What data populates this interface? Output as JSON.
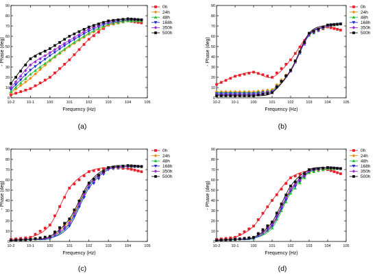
{
  "figure": {
    "series_names": [
      "0h",
      "24h",
      "48h",
      "168h",
      "350h",
      "500h"
    ],
    "series_colors": [
      "#e8202a",
      "#f28c18",
      "#22c33a",
      "#1f2ccf",
      "#9a2bd6",
      "#111111"
    ],
    "series_markers": [
      "square",
      "diamond",
      "triangle-up",
      "triangle-down",
      "diamond",
      "square"
    ]
  },
  "chart_data": [
    {
      "type": "line",
      "panel_label": "(a)",
      "title": "",
      "xlabel": "Frequency (Hz)",
      "ylabel": "- Phase (deg)",
      "xscale": "log",
      "xlim": [
        0.01,
        100000
      ],
      "ylim": [
        0,
        90
      ],
      "xticks": [
        "10-2",
        "10-1",
        "100",
        "101",
        "102",
        "103",
        "104",
        "105"
      ],
      "yticks": [
        "0",
        "10",
        "20",
        "30",
        "40",
        "50",
        "60",
        "70",
        "80",
        "90"
      ],
      "grid": false,
      "legend": "right-outside-top",
      "x": [
        0.01,
        0.1,
        1,
        10,
        100,
        1000,
        10000,
        50000
      ],
      "series": [
        {
          "name": "0h",
          "values": [
            3,
            9,
            20,
            37,
            57,
            71,
            75,
            73
          ]
        },
        {
          "name": "24h",
          "values": [
            5,
            19,
            36,
            50,
            62,
            71,
            75,
            75
          ]
        },
        {
          "name": "48h",
          "values": [
            6,
            23,
            37,
            51,
            63,
            72,
            75,
            75
          ]
        },
        {
          "name": "168h",
          "values": [
            8,
            27,
            41,
            54,
            65,
            73,
            76,
            76
          ]
        },
        {
          "name": "350h",
          "values": [
            10,
            32,
            44,
            56,
            67,
            74,
            77,
            76
          ]
        },
        {
          "name": "500h",
          "values": [
            14,
            38,
            48,
            60,
            69,
            75,
            77,
            76
          ]
        }
      ]
    },
    {
      "type": "line",
      "panel_label": "(b)",
      "title": "",
      "xlabel": "Frequency (Hz)",
      "ylabel": "- Phase (deg)",
      "xscale": "log",
      "xlim": [
        0.01,
        100000
      ],
      "ylim": [
        0,
        90
      ],
      "xticks": [
        "10-2",
        "10-1",
        "100",
        "101",
        "102",
        "103",
        "104",
        "105"
      ],
      "yticks": [
        "0",
        "10",
        "20",
        "30",
        "40",
        "50",
        "60",
        "70",
        "80",
        "90"
      ],
      "grid": false,
      "legend": "right-outside-top",
      "x": [
        0.01,
        0.1,
        1,
        10,
        100,
        1000,
        10000,
        50000
      ],
      "series": [
        {
          "name": "0h",
          "values": [
            13,
            21,
            25,
            20,
            37,
            62,
            69,
            66
          ]
        },
        {
          "name": "24h",
          "values": [
            6,
            6,
            6,
            8,
            27,
            62,
            70,
            72
          ]
        },
        {
          "name": "48h",
          "values": [
            5,
            5,
            5,
            7,
            26,
            61,
            70,
            72
          ]
        },
        {
          "name": "168h",
          "values": [
            4,
            4,
            4,
            6,
            26,
            61,
            70,
            72
          ]
        },
        {
          "name": "350h",
          "values": [
            3,
            3,
            3,
            6,
            26,
            62,
            70,
            72
          ]
        },
        {
          "name": "500h",
          "values": [
            2,
            2,
            2,
            5,
            27,
            63,
            71,
            72
          ]
        }
      ]
    },
    {
      "type": "line",
      "panel_label": "(c)",
      "title": "",
      "xlabel": "Frequency (Hz)",
      "ylabel": "- Phase (deg)",
      "xscale": "log",
      "xlim": [
        0.01,
        100000
      ],
      "ylim": [
        0,
        90
      ],
      "xticks": [
        "10-2",
        "10-1",
        "100",
        "101",
        "102",
        "103",
        "104",
        "105"
      ],
      "yticks": [
        "0",
        "10",
        "20",
        "30",
        "40",
        "50",
        "60",
        "70",
        "80",
        "90"
      ],
      "grid": false,
      "legend": "right-outside-top",
      "x": [
        0.01,
        0.1,
        1,
        10,
        100,
        1000,
        10000,
        50000
      ],
      "series": [
        {
          "name": "0h",
          "values": [
            2,
            4,
            16,
            52,
            68,
            72,
            71,
            68
          ]
        },
        {
          "name": "24h",
          "values": [
            1,
            2,
            4,
            20,
            55,
            71,
            73,
            73
          ]
        },
        {
          "name": "48h",
          "values": [
            1,
            2,
            3,
            17,
            54,
            71,
            73,
            73
          ]
        },
        {
          "name": "168h",
          "values": [
            1,
            2,
            3,
            15,
            52,
            70,
            73,
            73
          ]
        },
        {
          "name": "350h",
          "values": [
            1,
            2,
            4,
            18,
            55,
            71,
            73,
            73
          ]
        },
        {
          "name": "500h",
          "values": [
            1,
            2,
            5,
            22,
            57,
            72,
            74,
            73
          ]
        }
      ]
    },
    {
      "type": "line",
      "panel_label": "(d)",
      "title": "",
      "xlabel": "Frequency (Hz)",
      "ylabel": "- Phase (deg)",
      "xscale": "log",
      "xlim": [
        0.01,
        100000
      ],
      "ylim": [
        0,
        90
      ],
      "xticks": [
        "10-2",
        "10-1",
        "100",
        "101",
        "102",
        "103",
        "104",
        "105"
      ],
      "yticks": [
        "0",
        "10",
        "20",
        "30",
        "40",
        "50",
        "60",
        "70",
        "80",
        "90"
      ],
      "grid": false,
      "legend": "right-outside-top",
      "x": [
        0.01,
        0.1,
        1,
        10,
        100,
        1000,
        10000,
        50000
      ],
      "series": [
        {
          "name": "0h",
          "values": [
            2,
            4,
            15,
            40,
            62,
            69,
            70,
            66
          ]
        },
        {
          "name": "24h",
          "values": [
            1,
            2,
            4,
            16,
            50,
            67,
            71,
            71
          ]
        },
        {
          "name": "48h",
          "values": [
            1,
            2,
            3,
            13,
            47,
            67,
            71,
            71
          ]
        },
        {
          "name": "168h",
          "values": [
            1,
            2,
            3,
            15,
            49,
            68,
            72,
            71
          ]
        },
        {
          "name": "350h",
          "values": [
            1,
            2,
            4,
            17,
            51,
            69,
            72,
            71
          ]
        },
        {
          "name": "500h",
          "values": [
            1,
            2,
            4,
            19,
            54,
            70,
            72,
            71
          ]
        }
      ]
    }
  ]
}
